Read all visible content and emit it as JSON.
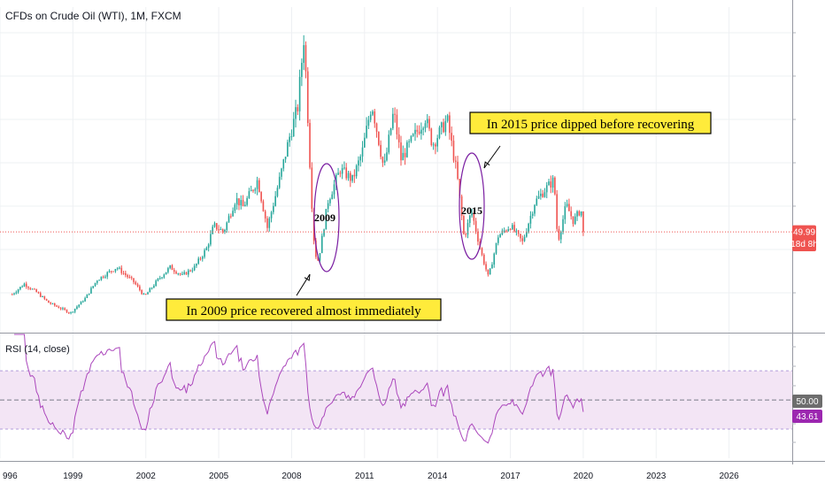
{
  "chart_data": {
    "type": "candlestick",
    "title": "CFDs on Crude Oil (WTI), 1M, FXCM",
    "x_axis": {
      "ticks": [
        "996",
        "1999",
        "2002",
        "2005",
        "2008",
        "2011",
        "2014",
        "2017",
        "2020",
        "2023",
        "2026"
      ],
      "range": [
        1996.0,
        2028.6
      ]
    },
    "y_axis": {
      "range": [
        2,
        158
      ],
      "tick_values": []
    },
    "price": {
      "last": 49.99,
      "last_label": "49.99",
      "timer_label": "18d 8h",
      "up_color": "#26a69a",
      "down_color": "#ef5350",
      "marker_color": "#ef5350",
      "timer_color": "#ef5350",
      "anchors": [
        [
          1996.5,
          20
        ],
        [
          1997.0,
          25
        ],
        [
          1997.5,
          21
        ],
        [
          1998.0,
          16
        ],
        [
          1998.9,
          11
        ],
        [
          1999.5,
          18
        ],
        [
          2000.0,
          27
        ],
        [
          2000.8,
          33
        ],
        [
          2001.5,
          26
        ],
        [
          2001.95,
          19
        ],
        [
          2002.5,
          27
        ],
        [
          2003.0,
          33
        ],
        [
          2003.5,
          29
        ],
        [
          2004.0,
          33
        ],
        [
          2004.5,
          42
        ],
        [
          2004.8,
          53
        ],
        [
          2005.2,
          50
        ],
        [
          2005.7,
          66
        ],
        [
          2006.0,
          62
        ],
        [
          2006.6,
          75
        ],
        [
          2007.0,
          52
        ],
        [
          2007.5,
          75
        ],
        [
          2007.9,
          95
        ],
        [
          2008.25,
          110
        ],
        [
          2008.5,
          143
        ],
        [
          2008.6,
          123
        ],
        [
          2008.8,
          70
        ],
        [
          2008.95,
          40
        ],
        [
          2009.1,
          36
        ],
        [
          2009.5,
          65
        ],
        [
          2010.0,
          80
        ],
        [
          2010.5,
          75
        ],
        [
          2010.9,
          88
        ],
        [
          2011.3,
          112
        ],
        [
          2011.8,
          80
        ],
        [
          2012.2,
          108
        ],
        [
          2012.5,
          85
        ],
        [
          2013.0,
          95
        ],
        [
          2013.5,
          105
        ],
        [
          2013.8,
          92
        ],
        [
          2014.4,
          104
        ],
        [
          2014.8,
          78
        ],
        [
          2015.1,
          47
        ],
        [
          2015.4,
          60
        ],
        [
          2015.8,
          40
        ],
        [
          2016.1,
          28
        ],
        [
          2016.5,
          48
        ],
        [
          2017.0,
          53
        ],
        [
          2017.5,
          45
        ],
        [
          2018.0,
          64
        ],
        [
          2018.4,
          70
        ],
        [
          2018.8,
          75
        ],
        [
          2018.95,
          45
        ],
        [
          2019.3,
          63
        ],
        [
          2019.6,
          55
        ],
        [
          2019.9,
          61
        ],
        [
          2020.05,
          50
        ]
      ]
    },
    "rsi": {
      "label": "RSI (14, close)",
      "upper": 70,
      "middle": 50,
      "lower": 30,
      "middle_label": "50.00",
      "value_label": "43.61",
      "line_color": "#ab47bc",
      "band_color": "#f3e5f5",
      "value_box_color": "#9c27b0",
      "middle_box_color": "#6d6d6d",
      "range": [
        10,
        95
      ]
    },
    "annotations": [
      {
        "label": "2009",
        "year": 2009.45
      },
      {
        "label": "2015",
        "year": 2015.45
      }
    ],
    "callouts": [
      {
        "text": "In 2015 price dipped before recovering",
        "bg": "#ffeb3b"
      },
      {
        "text": "In 2009 price recovered almost immediately",
        "bg": "#ffeb3b"
      }
    ]
  }
}
